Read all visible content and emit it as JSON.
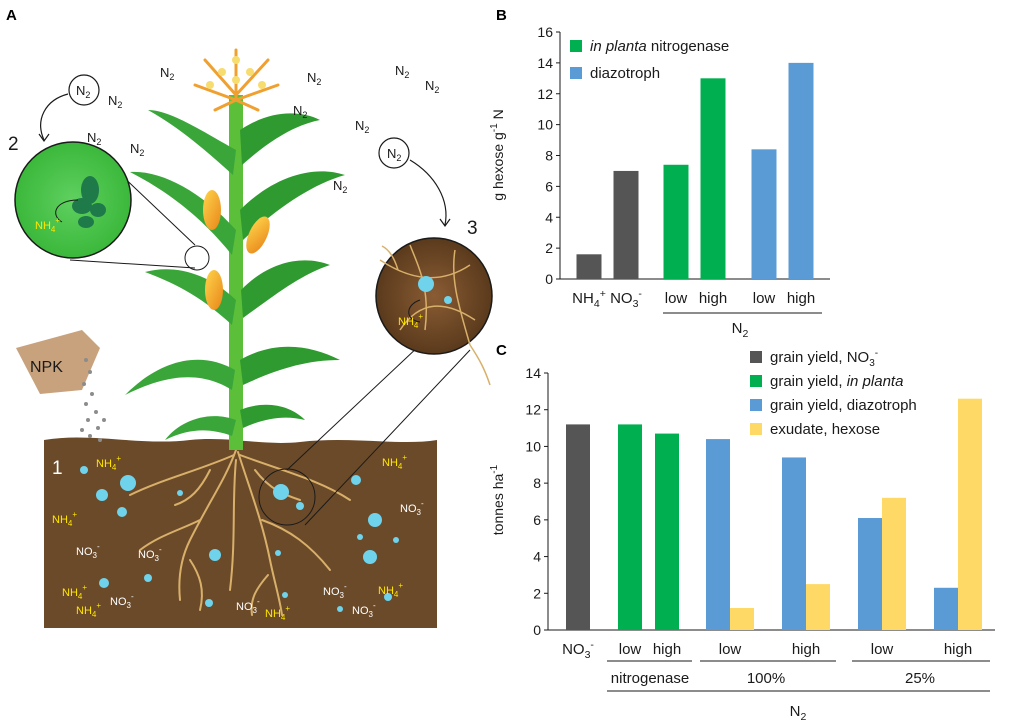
{
  "panels": {
    "a": {
      "label": "A",
      "gas": "N",
      "gas_sub": "2",
      "ammonium": "NH",
      "ammonium_sub": "4",
      "ammonium_sup": "+",
      "nitrate": "NO",
      "nitrate_sub": "3",
      "nitrate_sup": "-",
      "fertilizer": "NPK",
      "callouts": [
        "1",
        "2",
        "3"
      ]
    },
    "b": {
      "label": "B"
    },
    "c": {
      "label": "C"
    }
  },
  "colors": {
    "nitrate": "#555555",
    "in_planta": "#00b050",
    "diazotroph": "#5b9bd5",
    "exudate": "#ffd966",
    "soil": "#6b4a2a",
    "leaf": "#3aa63a"
  },
  "chart_data": [
    {
      "panel": "B",
      "type": "bar",
      "ylabel": "g hexose g⁻¹ N",
      "ylim": [
        0,
        16
      ],
      "yticks": [
        0,
        2,
        4,
        6,
        8,
        10,
        12,
        14,
        16
      ],
      "grid": false,
      "legend": {
        "position": "top-left",
        "entries": [
          {
            "label": "in planta nitrogenase",
            "color": "#00b050"
          },
          {
            "label": "diazotroph",
            "color": "#5b9bd5"
          }
        ]
      },
      "categories": [
        "NH4+",
        "NO3-",
        "low",
        "high",
        "low",
        "high"
      ],
      "values": [
        1.6,
        7.0,
        7.4,
        13.0,
        8.4,
        14.0
      ],
      "colors": [
        "#555555",
        "#555555",
        "#00b050",
        "#00b050",
        "#5b9bd5",
        "#5b9bd5"
      ],
      "group_label": "N2",
      "category_labels": [
        {
          "base": "NH",
          "sub": "4",
          "sup": "+"
        },
        {
          "base": "NO",
          "sub": "3",
          "sup": "-"
        },
        {
          "base": "low"
        },
        {
          "base": "high"
        },
        {
          "base": "low"
        },
        {
          "base": "high"
        }
      ],
      "group_label_parts": {
        "base": "N",
        "sub": "2"
      }
    },
    {
      "panel": "C",
      "type": "bar",
      "ylabel": "tonnes ha⁻¹",
      "ylim": [
        0,
        14
      ],
      "yticks": [
        0,
        2,
        4,
        6,
        8,
        10,
        12,
        14
      ],
      "grid": false,
      "legend": {
        "position": "top-right",
        "entries": [
          {
            "label": "grain yield, NO3-",
            "color": "#555555"
          },
          {
            "label": "grain yield, in planta",
            "color": "#00b050"
          },
          {
            "label": "grain yield, diazotroph",
            "color": "#5b9bd5"
          },
          {
            "label": "exudate, hexose",
            "color": "#ffd966"
          }
        ]
      },
      "categories": [
        "NO3-",
        "low",
        "high",
        "low",
        "high",
        "low",
        "high"
      ],
      "series": [
        {
          "name": "grain yield, NO3-",
          "values": [
            11.2,
            null,
            null,
            null,
            null,
            null,
            null
          ]
        },
        {
          "name": "grain yield, in planta",
          "values": [
            null,
            11.2,
            10.7,
            null,
            null,
            null,
            null
          ]
        },
        {
          "name": "grain yield, diazotroph",
          "values": [
            null,
            null,
            null,
            10.4,
            9.4,
            6.1,
            2.3
          ]
        },
        {
          "name": "exudate, hexose",
          "values": [
            null,
            null,
            null,
            1.2,
            2.5,
            7.2,
            12.6
          ]
        }
      ],
      "bars": [
        {
          "group": 0,
          "series": 0,
          "value": 11.2,
          "color": "#555555"
        },
        {
          "group": 1,
          "series": 1,
          "value": 11.2,
          "color": "#00b050"
        },
        {
          "group": 2,
          "series": 1,
          "value": 10.7,
          "color": "#00b050"
        },
        {
          "group": 3,
          "series": 2,
          "value": 10.4,
          "color": "#5b9bd5"
        },
        {
          "group": 3,
          "series": 3,
          "value": 1.2,
          "color": "#ffd966"
        },
        {
          "group": 4,
          "series": 2,
          "value": 9.4,
          "color": "#5b9bd5"
        },
        {
          "group": 4,
          "series": 3,
          "value": 2.5,
          "color": "#ffd966"
        },
        {
          "group": 5,
          "series": 2,
          "value": 6.1,
          "color": "#5b9bd5"
        },
        {
          "group": 5,
          "series": 3,
          "value": 7.2,
          "color": "#ffd966"
        },
        {
          "group": 6,
          "series": 2,
          "value": 2.3,
          "color": "#5b9bd5"
        },
        {
          "group": 6,
          "series": 3,
          "value": 12.6,
          "color": "#ffd966"
        }
      ],
      "category_labels": [
        {
          "base": "NO",
          "sub": "3",
          "sup": "-"
        },
        {
          "base": "low"
        },
        {
          "base": "high"
        },
        {
          "base": "low"
        },
        {
          "base": "high"
        },
        {
          "base": "low"
        },
        {
          "base": "high"
        }
      ],
      "group_labels": [
        "nitrogenase",
        "100%",
        "25%"
      ],
      "outer_label": "N2",
      "outer_label_parts": {
        "base": "N",
        "sub": "2"
      }
    }
  ],
  "legend_text_b": [
    {
      "italic": "in planta",
      "rest": " nitrogenase"
    },
    {
      "italic": "",
      "rest": "diazotroph"
    }
  ],
  "legend_text_c": [
    {
      "pre": "grain yield, NO",
      "sub": "3",
      "sup": "-",
      "italic": ""
    },
    {
      "pre": "grain yield, ",
      "italic": "in planta"
    },
    {
      "pre": "grain yield, diazotroph",
      "italic": ""
    },
    {
      "pre": "exudate, hexose",
      "italic": ""
    }
  ],
  "ylabel_b_parts": {
    "base": "g hexose g",
    "sup": "-1",
    "tail": " N"
  },
  "ylabel_c_parts": {
    "base": "tonnes ha",
    "sup": "-1"
  }
}
